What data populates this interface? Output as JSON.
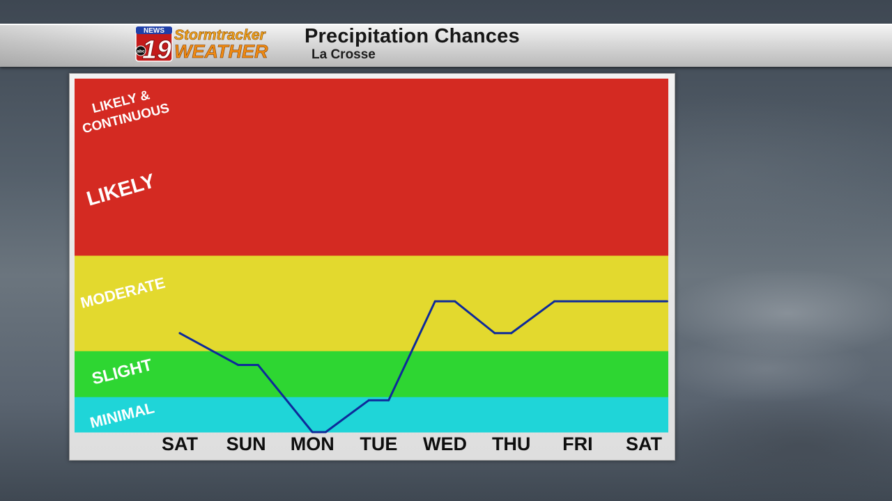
{
  "header": {
    "logo": {
      "news": "NEWS",
      "channel": "19",
      "network": "abc",
      "brand_top": "Stormtracker",
      "brand_bottom": "WEATHER"
    },
    "title": "Precipitation Chances",
    "subtitle": "La Crosse"
  },
  "colors": {
    "likely": "#d42a22",
    "moderate": "#e3d92e",
    "slight": "#2ed632",
    "minimal": "#1fd5d8",
    "line": "#0e2a9a"
  },
  "chart_data": {
    "type": "line",
    "categories": [
      "SAT",
      "SUN",
      "MON",
      "TUE",
      "WED",
      "THU",
      "FRI",
      "SAT"
    ],
    "bands": [
      {
        "name": "MINIMAL",
        "from": 0,
        "to": 10
      },
      {
        "name": "SLIGHT",
        "from": 10,
        "to": 23
      },
      {
        "name": "MODERATE",
        "from": 23,
        "to": 50
      },
      {
        "name": "LIKELY",
        "from": 50,
        "to": 94
      },
      {
        "name": "LIKELY & CONTINUOUS",
        "from": 94,
        "to": 100
      }
    ],
    "band_labels": [
      "LIKELY &",
      "CONTINUOUS",
      "LIKELY",
      "MODERATE",
      "SLIGHT",
      "MINIMAL"
    ],
    "series": [
      {
        "x": [
          0,
          0.88,
          1.18,
          2.0,
          2.2,
          2.85,
          3.15,
          3.85,
          4.15,
          4.75,
          5.0,
          5.65,
          6.0,
          7.35
        ],
        "y": [
          28,
          19,
          19,
          0,
          0,
          9,
          9,
          37,
          37,
          28,
          28,
          37,
          37,
          37
        ]
      }
    ],
    "ylim": [
      0,
      100
    ]
  }
}
